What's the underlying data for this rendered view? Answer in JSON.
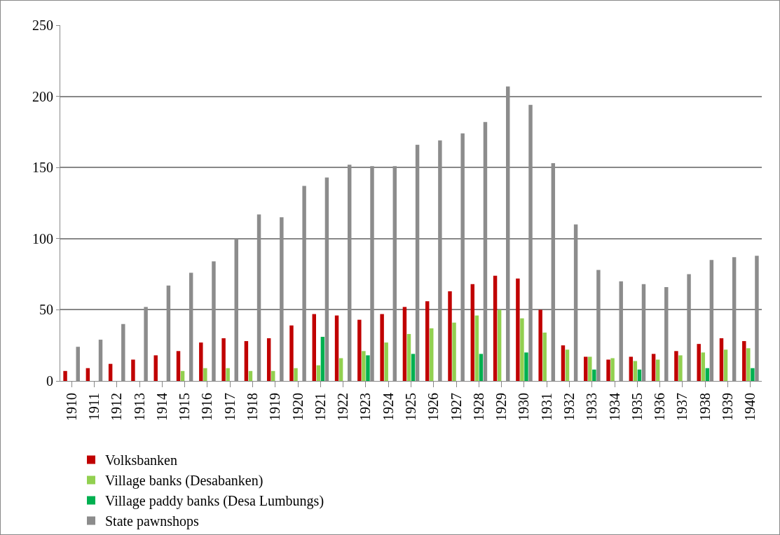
{
  "chart_data": {
    "type": "bar",
    "categories": [
      "1910",
      "1911",
      "1912",
      "1913",
      "1914",
      "1915",
      "1916",
      "1917",
      "1918",
      "1919",
      "1920",
      "1921",
      "1922",
      "1923",
      "1924",
      "1925",
      "1926",
      "1927",
      "1928",
      "1929",
      "1930",
      "1931",
      "1932",
      "1933",
      "1934",
      "1935",
      "1936",
      "1937",
      "1938",
      "1939",
      "1940"
    ],
    "series": [
      {
        "name": "Volksbanken",
        "color": "#c00000",
        "values": [
          7,
          9,
          12,
          15,
          18,
          21,
          27,
          30,
          28,
          30,
          39,
          47,
          46,
          43,
          47,
          52,
          56,
          63,
          68,
          74,
          72,
          50,
          25,
          17,
          15,
          17,
          19,
          21,
          26,
          30,
          28
        ]
      },
      {
        "name": "Village banks (Desabanken)",
        "color": "#92d050",
        "values": [
          0,
          0,
          0,
          0,
          0,
          7,
          9,
          9,
          7,
          7,
          9,
          11,
          16,
          21,
          27,
          33,
          37,
          41,
          46,
          50,
          44,
          34,
          22,
          17,
          16,
          14,
          15,
          18,
          20,
          22,
          23
        ]
      },
      {
        "name": "Village paddy banks (Desa Lumbungs)",
        "color": "#00b050",
        "values": [
          null,
          null,
          null,
          null,
          null,
          null,
          null,
          null,
          null,
          null,
          null,
          31,
          null,
          18,
          null,
          19,
          null,
          null,
          19,
          null,
          20,
          null,
          null,
          8,
          null,
          8,
          null,
          null,
          9,
          null,
          9
        ]
      },
      {
        "name": "State pawnshops",
        "color": "#8c8c8c",
        "values": [
          24,
          29,
          40,
          52,
          67,
          76,
          84,
          100,
          117,
          115,
          137,
          143,
          152,
          151,
          151,
          166,
          169,
          174,
          182,
          207,
          194,
          153,
          110,
          78,
          70,
          68,
          66,
          75,
          85,
          87,
          88
        ]
      }
    ],
    "ylim": [
      0,
      250
    ],
    "yticks": [
      0,
      50,
      100,
      150,
      200,
      250
    ],
    "grid": "y",
    "legend": "bottom"
  }
}
